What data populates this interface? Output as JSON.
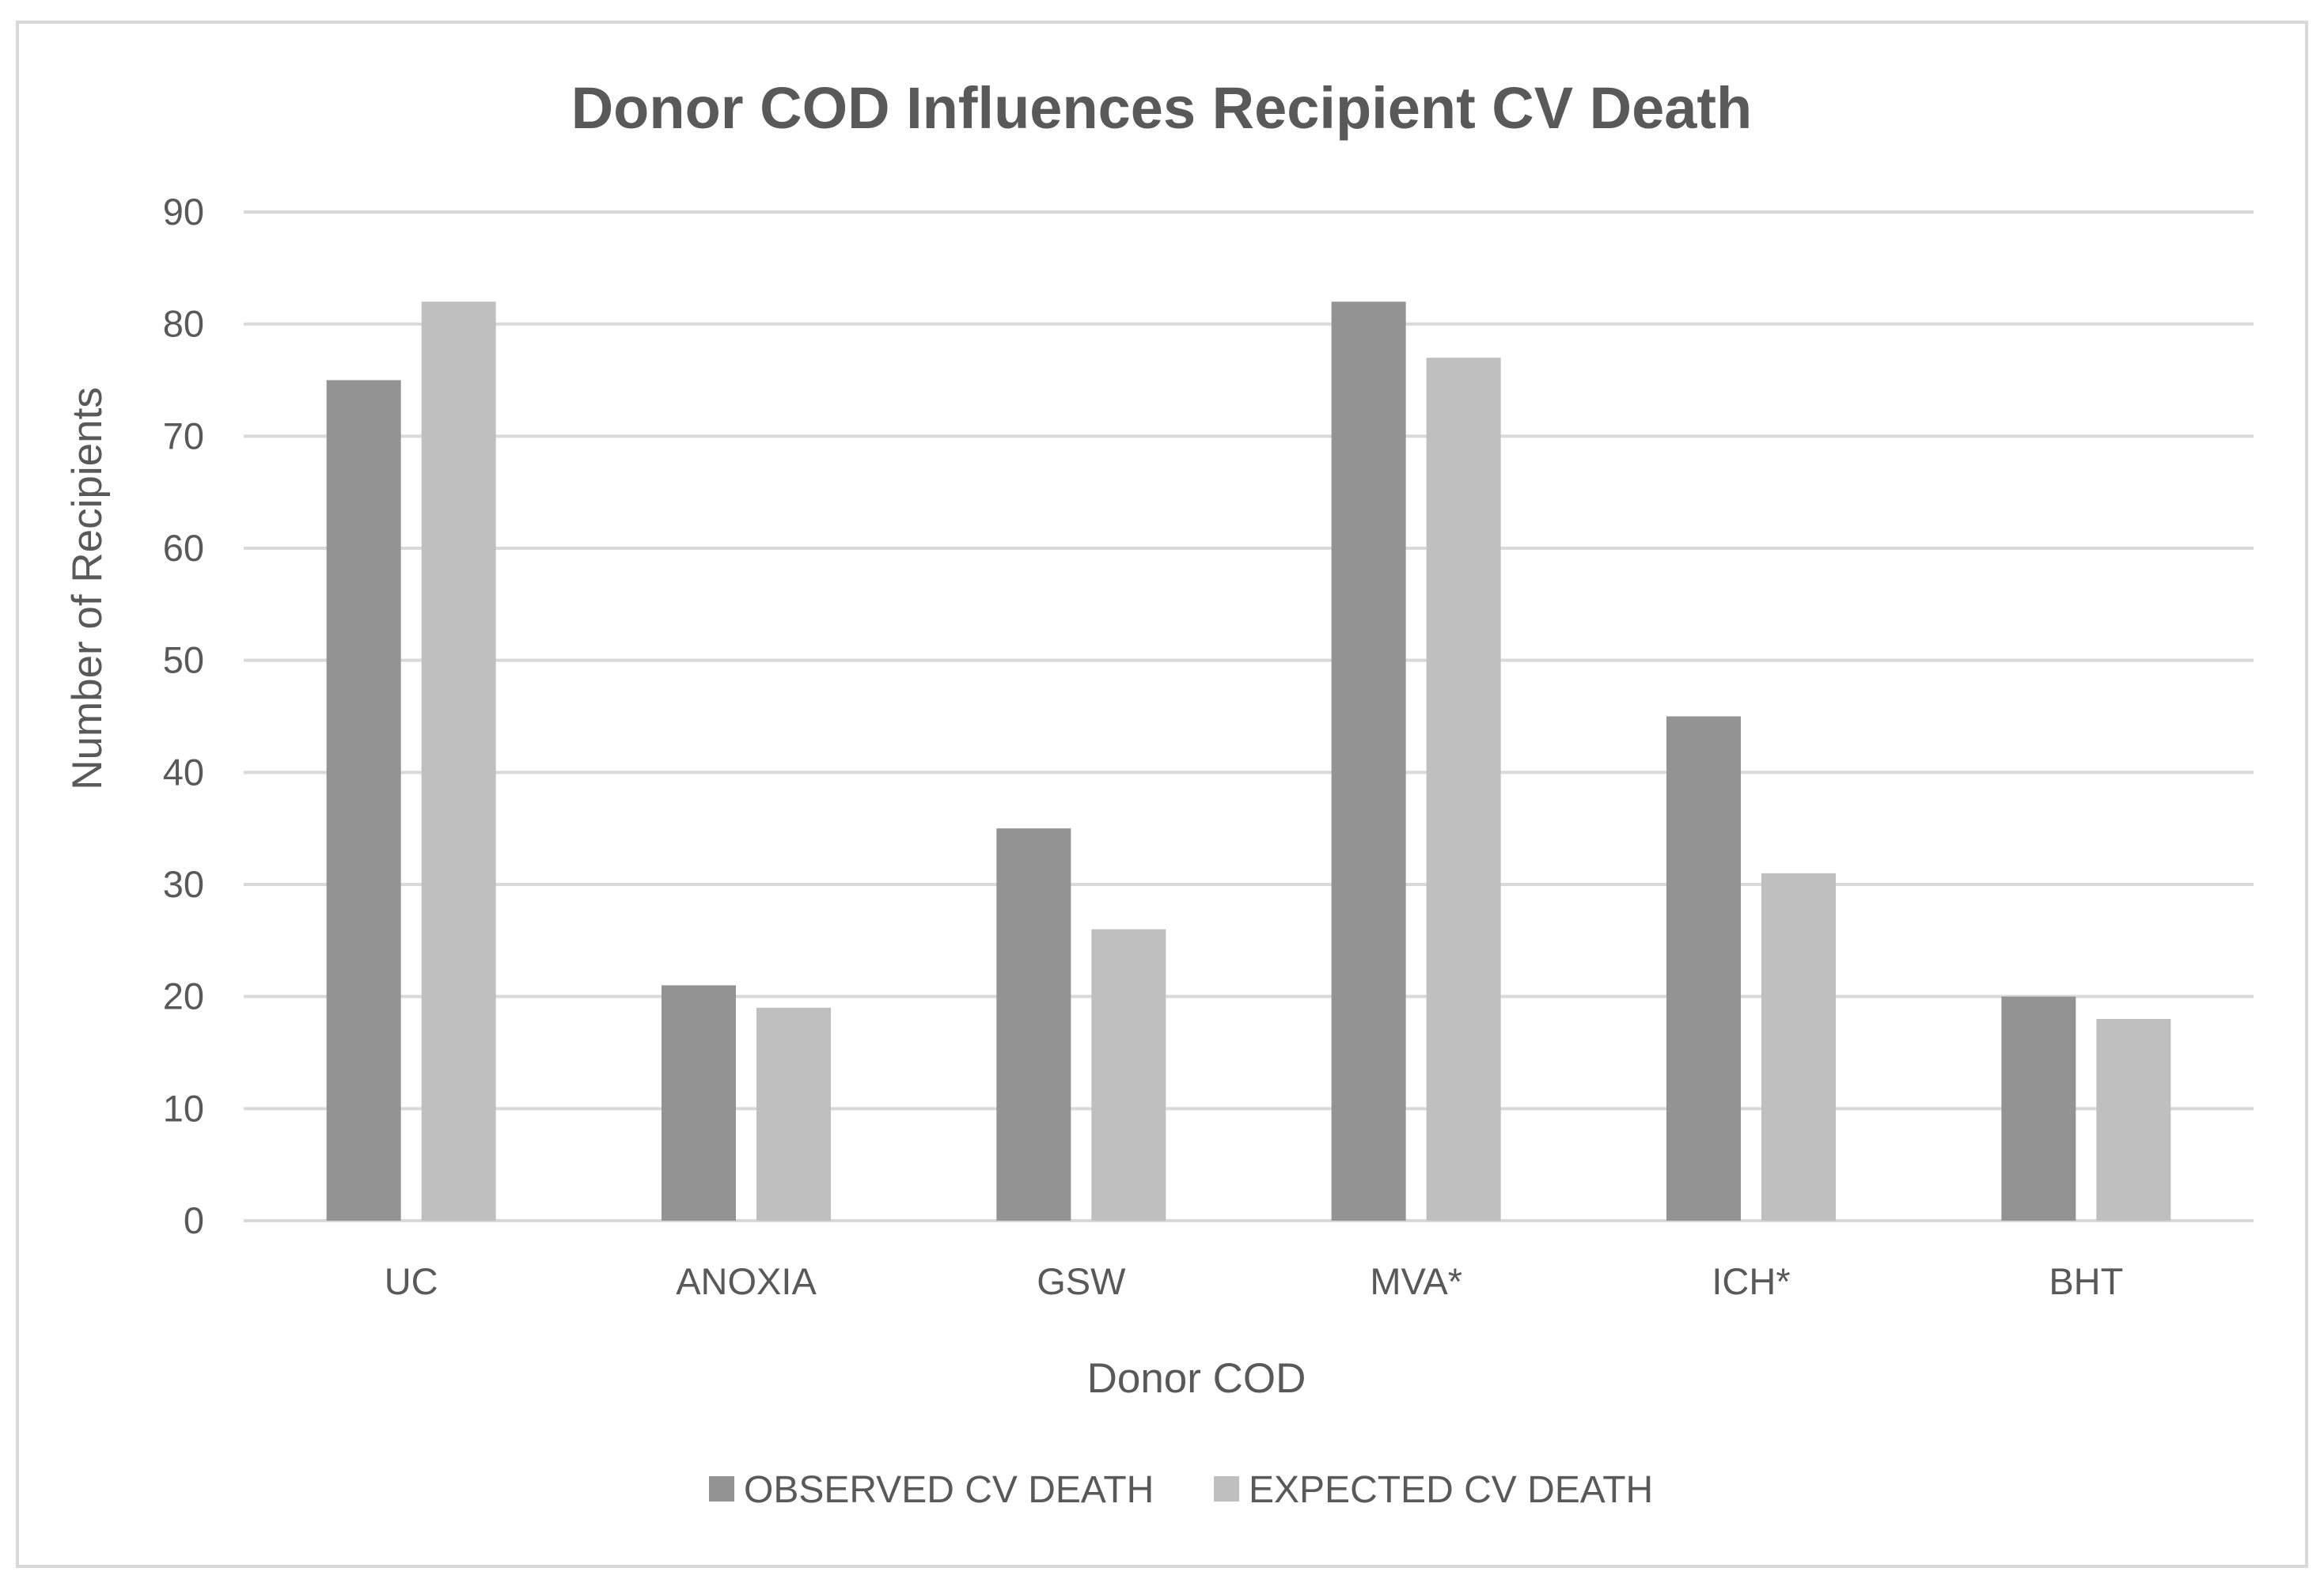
{
  "chart_data": {
    "type": "bar",
    "title": "Donor COD Influences Recipient CV Death",
    "xlabel": "Donor COD",
    "ylabel": "Number of Recipients",
    "categories": [
      "UC",
      "ANOXIA",
      "GSW",
      "MVA*",
      "ICH*",
      "BHT"
    ],
    "series": [
      {
        "name": "OBSERVED CV DEATH",
        "values": [
          75,
          21,
          35,
          82,
          45,
          20
        ],
        "color": "#939393"
      },
      {
        "name": "EXPECTED CV DEATH",
        "values": [
          82,
          19,
          26,
          77,
          31,
          18
        ],
        "color": "#bfbfbf"
      }
    ],
    "ylim": [
      0,
      90
    ],
    "yticks": [
      0,
      10,
      20,
      30,
      40,
      50,
      60,
      70,
      80,
      90
    ],
    "grid": true,
    "legend_position": "bottom-center",
    "gridline_color": "#d9d9d9",
    "text_color": "#595959"
  }
}
